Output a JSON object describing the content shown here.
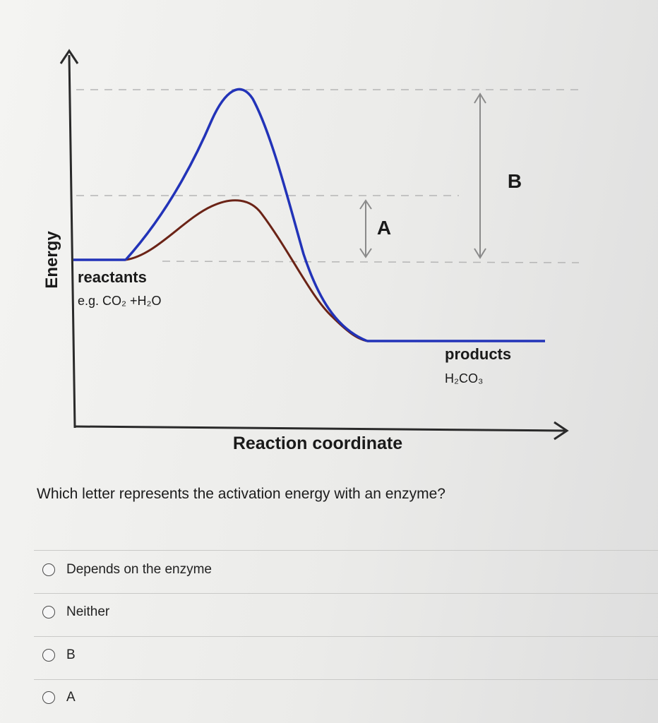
{
  "diagram": {
    "y_axis_label": "Energy",
    "x_axis_label": "Reaction coordinate",
    "reactants_label": "reactants",
    "reactants_example": "e.g. CO₂ +H₂O",
    "products_label": "products",
    "products_example": "H₂CO₃",
    "marker_a": "A",
    "marker_b": "B",
    "colors": {
      "uncatalyzed_curve": "#2233b8",
      "enzyme_curve": "#6b2316",
      "axis": "#2a2a2a",
      "guide_lines": "#b5b5b5",
      "arrows": "#8a8a8a"
    }
  },
  "question": {
    "text": "Which letter represents the activation energy with an enzyme?",
    "options": [
      {
        "label": "Depends on the enzyme",
        "selected": false
      },
      {
        "label": "Neither",
        "selected": false
      },
      {
        "label": "B",
        "selected": false
      },
      {
        "label": "A",
        "selected": false
      }
    ]
  }
}
